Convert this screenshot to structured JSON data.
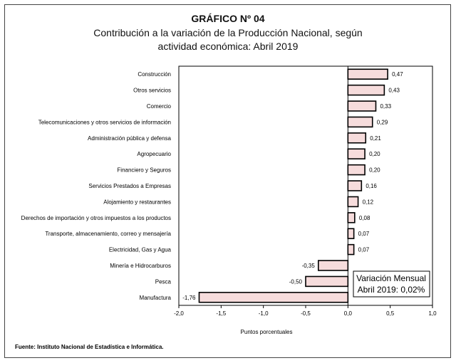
{
  "chart_data": {
    "type": "bar",
    "orientation": "horizontal",
    "title": "GRÁFICO Nº 04",
    "subtitle_lines": [
      "Contribución a la variación de la Producción Nacional, según",
      "actividad económica: Abril 2019"
    ],
    "xlabel": "Puntos porcentuales",
    "ylabel": "",
    "xlim": [
      -2.0,
      1.0
    ],
    "xticks": [
      -2.0,
      -1.5,
      -1.0,
      -0.5,
      0.0,
      0.5,
      1.0
    ],
    "xtick_labels": [
      "-2,0",
      "-1,5",
      "-1,0",
      "-0,5",
      "0,0",
      "0,5",
      "1,0"
    ],
    "categories": [
      "Construcción",
      "Otros servicios",
      "Comercio",
      "Telecomunicaciones y otros servicios de información",
      "Administración pública y defensa",
      "Agropecuario",
      "Financiero y Seguros",
      "Servicios Prestados a Empresas",
      "Alojamiento y restaurantes",
      "Derechos de importación y otros impuestos a los productos",
      "Transporte, almacenamiento, correo y mensajería",
      "Electricidad, Gas y Agua",
      "Minería e Hidrocarburos",
      "Pesca",
      "Manufactura"
    ],
    "values": [
      0.47,
      0.43,
      0.33,
      0.29,
      0.21,
      0.2,
      0.2,
      0.16,
      0.12,
      0.08,
      0.07,
      0.07,
      -0.35,
      -0.5,
      -1.76
    ],
    "value_labels": [
      "0,47",
      "0,43",
      "0,33",
      "0,29",
      "0,21",
      "0,20",
      "0,20",
      "0,16",
      "0,12",
      "0,08",
      "0,07",
      "0,07",
      "-0,35",
      "-0,50",
      "-1,76"
    ],
    "colors": {
      "bar_fill": "#f6dcdc",
      "bar_stroke": "#000000"
    },
    "annotation": {
      "line1": "Variación Mensual",
      "line2": "Abril 2019: 0,02%"
    },
    "grid": false
  },
  "source": "Fuente:  Instituto Nacional de Estadística e Informática."
}
